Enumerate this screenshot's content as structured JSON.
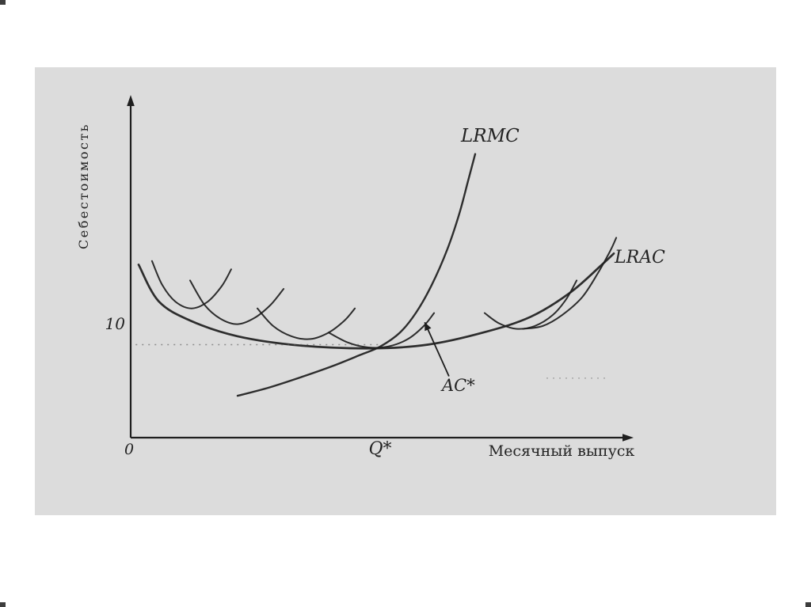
{
  "chart_data": {
    "type": "line",
    "title": "",
    "xlabel": "Месячный выпуск",
    "ylabel": "Себестоимость",
    "origin_label": "0",
    "x_range": [
      0,
      100
    ],
    "y_range": [
      0,
      36
    ],
    "x_ticks": [
      {
        "value": 50,
        "label": "Q*"
      }
    ],
    "y_ticks": [
      {
        "value": 10,
        "label": "10"
      }
    ],
    "grid": false,
    "legend_position": "none",
    "line_color": "#1d1d1d",
    "curve_labels": {
      "lrmc": "LRMC",
      "lrac": "LRAC",
      "ac_star": "AC*"
    },
    "series": [
      {
        "name": "LRAC",
        "points": [
          [
            1.6,
            18.6
          ],
          [
            5.6,
            14.7
          ],
          [
            12,
            12.6
          ],
          [
            21.6,
            10.9
          ],
          [
            34.4,
            9.9
          ],
          [
            48.8,
            9.6
          ],
          [
            60,
            10
          ],
          [
            71.2,
            11.3
          ],
          [
            80.8,
            13
          ],
          [
            88.8,
            15.6
          ],
          [
            95.2,
            18.6
          ],
          [
            97.6,
            19.8
          ]
        ]
      },
      {
        "name": "LRMC",
        "points": [
          [
            21.6,
            4.5
          ],
          [
            28,
            5.4
          ],
          [
            34.4,
            6.5
          ],
          [
            40.8,
            7.7
          ],
          [
            46.4,
            8.9
          ],
          [
            50.4,
            9.8
          ],
          [
            54.4,
            11.3
          ],
          [
            57.6,
            13.4
          ],
          [
            60.8,
            16.4
          ],
          [
            64,
            20.3
          ],
          [
            66.4,
            24.1
          ],
          [
            68.3,
            27.9
          ],
          [
            69.6,
            30.5
          ]
        ]
      },
      {
        "name": "SRAC-1",
        "points": [
          [
            4.3,
            19
          ],
          [
            6.4,
            16.4
          ],
          [
            9.1,
            14.6
          ],
          [
            12.3,
            13.9
          ],
          [
            15.5,
            14.6
          ],
          [
            18.4,
            16.3
          ],
          [
            20.3,
            18.1
          ]
        ]
      },
      {
        "name": "SRAC-2",
        "points": [
          [
            12,
            16.9
          ],
          [
            14.9,
            14.3
          ],
          [
            18.1,
            12.8
          ],
          [
            21.6,
            12.2
          ],
          [
            25.1,
            12.9
          ],
          [
            28.3,
            14.3
          ],
          [
            30.9,
            16
          ]
        ]
      },
      {
        "name": "SRAC-3",
        "points": [
          [
            25.6,
            13.9
          ],
          [
            28.8,
            12
          ],
          [
            32.5,
            10.9
          ],
          [
            36.3,
            10.6
          ],
          [
            40,
            11.3
          ],
          [
            43.2,
            12.6
          ],
          [
            45.3,
            13.9
          ]
        ]
      },
      {
        "name": "SRAC-4",
        "points": [
          [
            40,
            11.3
          ],
          [
            44,
            10.2
          ],
          [
            48,
            9.7
          ],
          [
            52,
            9.8
          ],
          [
            56,
            10.6
          ],
          [
            59.2,
            12
          ],
          [
            61.3,
            13.4
          ]
        ]
      },
      {
        "name": "SRAC-5",
        "points": [
          [
            71.5,
            13.4
          ],
          [
            74.4,
            12.3
          ],
          [
            77.9,
            11.7
          ],
          [
            81.6,
            12
          ],
          [
            85.3,
            13.2
          ],
          [
            88,
            14.9
          ],
          [
            90.1,
            16.9
          ]
        ]
      },
      {
        "name": "SRAC-6",
        "points": [
          [
            79.2,
            11.7
          ],
          [
            83.2,
            12
          ],
          [
            87.2,
            13.2
          ],
          [
            91.2,
            15.1
          ],
          [
            94.4,
            17.7
          ],
          [
            96.8,
            20
          ],
          [
            98.1,
            21.5
          ]
        ]
      }
    ],
    "dotted_lines": [
      {
        "y": 10,
        "x1": 1,
        "x2": 50,
        "opacity": 0.6
      },
      {
        "y": 6.4,
        "x1": 84,
        "x2": 96,
        "opacity": 0.35
      }
    ],
    "annotations": [
      {
        "name": "AC*-pointer",
        "from": [
          64.3,
          6.6
        ],
        "to": [
          59.4,
          12.4
        ]
      }
    ]
  }
}
